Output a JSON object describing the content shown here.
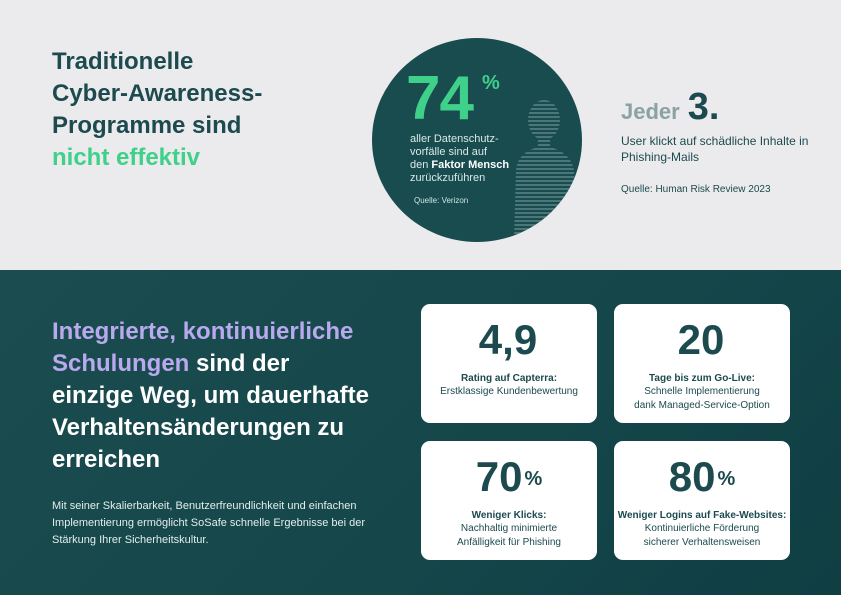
{
  "top": {
    "headline_line1": "Traditionelle",
    "headline_line2": "Cyber-Awareness-",
    "headline_line3": "Programme sind",
    "headline_highlight": "nicht effektiv",
    "stat_value": "74",
    "stat_unit": "%",
    "stat_text_1": "aller Datenschutz-",
    "stat_text_2": "vorfälle sind auf",
    "stat_text_3": "den",
    "stat_text_bold": "Faktor Mensch",
    "stat_text_4": "zurückzuführen",
    "stat_source": "Quelle: Verizon",
    "jeder_word": "Jeder",
    "jeder_number": "3.",
    "jeder_text": "User klickt auf schädliche Inhalte in Phishing-Mails",
    "jeder_source": "Quelle: Human Risk Review 2023",
    "colors": {
      "accent_green": "#3fd08a",
      "dark_teal": "#1c4a4e"
    }
  },
  "bottom": {
    "headline_highlight_1": "Integrierte, kontinuierliche",
    "headline_highlight_2": "Schulungen",
    "headline_rest_1": "sind der",
    "headline_rest_2": "einzige Weg, um dauerhafte",
    "headline_rest_3": "Verhaltensänderungen zu",
    "headline_rest_4": "erreichen",
    "paragraph": "Mit seiner Skalierbarkeit, Benutzerfreundlichkeit und einfachen Implementierung ermöglicht SoSafe schnelle Ergebnisse bei der Stärkung Ihrer Sicherheitskultur.",
    "colors": {
      "lavender": "#b9a9ee"
    },
    "cards": [
      {
        "value": "4,9",
        "unit": "",
        "title": "Rating auf Capterra:",
        "desc_1": "Erstklassige Kundenbewertung",
        "desc_2": ""
      },
      {
        "value": "20",
        "unit": "",
        "title": "Tage bis zum Go-Live:",
        "desc_1": "Schnelle Implementierung",
        "desc_2": "dank Managed-Service-Option"
      },
      {
        "value": "70",
        "unit": "%",
        "title": "Weniger Klicks:",
        "desc_1": "Nachhaltig minimierte",
        "desc_2": "Anfälligkeit für Phishing"
      },
      {
        "value": "80",
        "unit": "%",
        "title": "Weniger Logins auf Fake-Websites:",
        "desc_1": "Kontinuierliche Förderung",
        "desc_2": "sicherer Verhaltensweisen"
      }
    ]
  }
}
